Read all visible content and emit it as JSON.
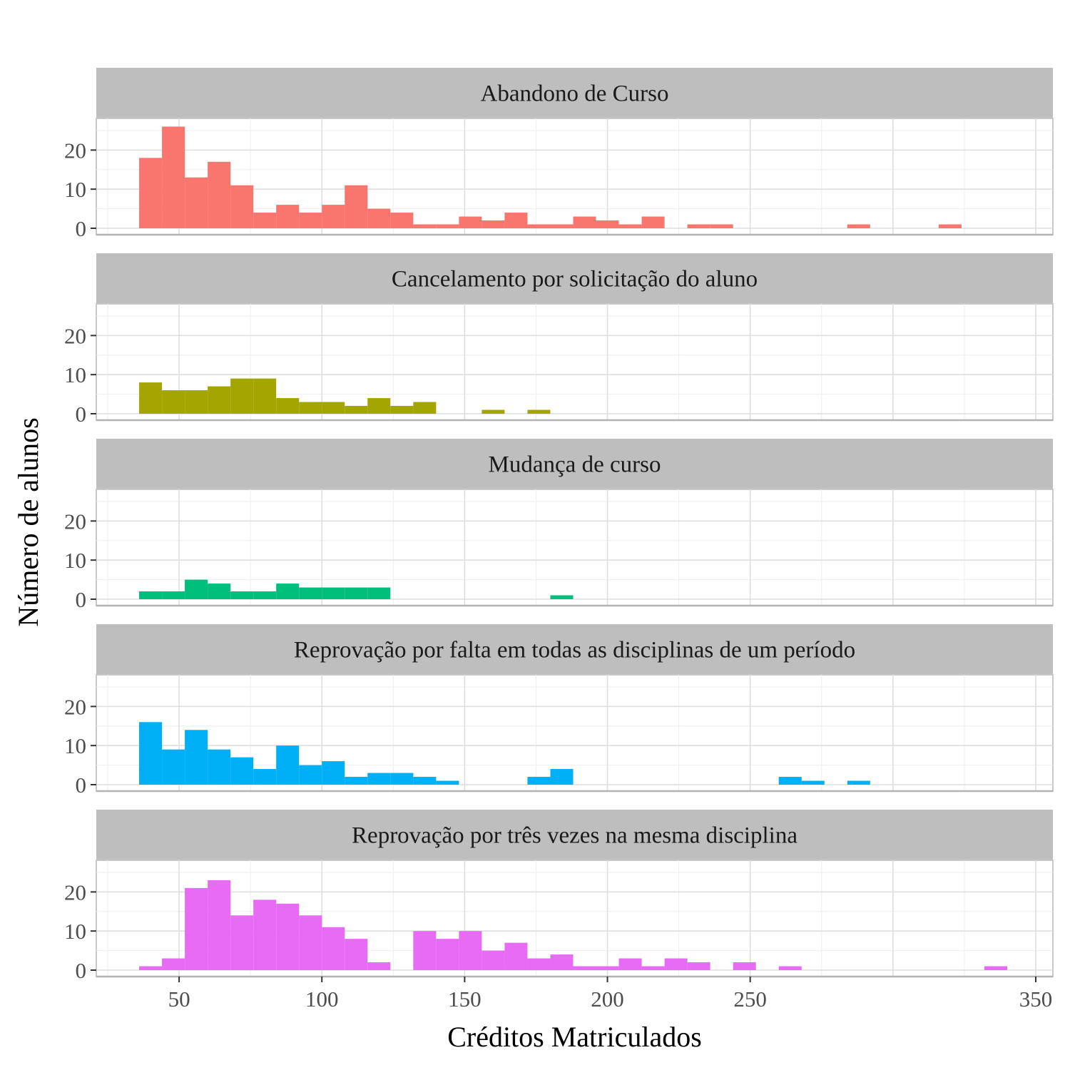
{
  "chart_data": {
    "type": "bar",
    "xlabel": "Créditos Matriculados",
    "ylabel": "Número de alunos",
    "xlim": [
      21,
      356
    ],
    "ylim": [
      0,
      27
    ],
    "bin_width": 8,
    "bin_start": 36,
    "x_ticks": [
      50,
      100,
      150,
      200,
      250,
      350
    ],
    "y_ticks": [
      0,
      10,
      20
    ],
    "grid": true,
    "legend": "none",
    "panels": [
      {
        "name": "Abandono de Curso",
        "color": "#F8766D",
        "bins": [
          {
            "x0": 36,
            "count": 18
          },
          {
            "x0": 44,
            "count": 26
          },
          {
            "x0": 52,
            "count": 13
          },
          {
            "x0": 60,
            "count": 17
          },
          {
            "x0": 68,
            "count": 11
          },
          {
            "x0": 76,
            "count": 4
          },
          {
            "x0": 84,
            "count": 6
          },
          {
            "x0": 92,
            "count": 4
          },
          {
            "x0": 100,
            "count": 6
          },
          {
            "x0": 108,
            "count": 11
          },
          {
            "x0": 116,
            "count": 5
          },
          {
            "x0": 124,
            "count": 4
          },
          {
            "x0": 132,
            "count": 1
          },
          {
            "x0": 140,
            "count": 1
          },
          {
            "x0": 148,
            "count": 3
          },
          {
            "x0": 156,
            "count": 2
          },
          {
            "x0": 164,
            "count": 4
          },
          {
            "x0": 172,
            "count": 1
          },
          {
            "x0": 180,
            "count": 1
          },
          {
            "x0": 188,
            "count": 3
          },
          {
            "x0": 196,
            "count": 2
          },
          {
            "x0": 204,
            "count": 1
          },
          {
            "x0": 212,
            "count": 3
          },
          {
            "x0": 228,
            "count": 1
          },
          {
            "x0": 236,
            "count": 1
          },
          {
            "x0": 284,
            "count": 1
          },
          {
            "x0": 316,
            "count": 1
          }
        ]
      },
      {
        "name": "Cancelamento por solicitação do aluno",
        "color": "#A3A500",
        "bins": [
          {
            "x0": 36,
            "count": 8
          },
          {
            "x0": 44,
            "count": 6
          },
          {
            "x0": 52,
            "count": 6
          },
          {
            "x0": 60,
            "count": 7
          },
          {
            "x0": 68,
            "count": 9
          },
          {
            "x0": 76,
            "count": 9
          },
          {
            "x0": 84,
            "count": 4
          },
          {
            "x0": 92,
            "count": 3
          },
          {
            "x0": 100,
            "count": 3
          },
          {
            "x0": 108,
            "count": 2
          },
          {
            "x0": 116,
            "count": 4
          },
          {
            "x0": 124,
            "count": 2
          },
          {
            "x0": 132,
            "count": 3
          },
          {
            "x0": 156,
            "count": 1
          },
          {
            "x0": 172,
            "count": 1
          }
        ]
      },
      {
        "name": "Mudança de curso",
        "color": "#00BF7D",
        "bins": [
          {
            "x0": 36,
            "count": 2
          },
          {
            "x0": 44,
            "count": 2
          },
          {
            "x0": 52,
            "count": 5
          },
          {
            "x0": 60,
            "count": 4
          },
          {
            "x0": 68,
            "count": 2
          },
          {
            "x0": 76,
            "count": 2
          },
          {
            "x0": 84,
            "count": 4
          },
          {
            "x0": 92,
            "count": 3
          },
          {
            "x0": 100,
            "count": 3
          },
          {
            "x0": 108,
            "count": 3
          },
          {
            "x0": 116,
            "count": 3
          },
          {
            "x0": 180,
            "count": 1
          }
        ]
      },
      {
        "name": "Reprovação por falta em todas as disciplinas de um período",
        "color": "#00B0F6",
        "bins": [
          {
            "x0": 36,
            "count": 16
          },
          {
            "x0": 44,
            "count": 9
          },
          {
            "x0": 52,
            "count": 14
          },
          {
            "x0": 60,
            "count": 9
          },
          {
            "x0": 68,
            "count": 7
          },
          {
            "x0": 76,
            "count": 4
          },
          {
            "x0": 84,
            "count": 10
          },
          {
            "x0": 92,
            "count": 5
          },
          {
            "x0": 100,
            "count": 6
          },
          {
            "x0": 108,
            "count": 2
          },
          {
            "x0": 116,
            "count": 3
          },
          {
            "x0": 124,
            "count": 3
          },
          {
            "x0": 132,
            "count": 2
          },
          {
            "x0": 140,
            "count": 1
          },
          {
            "x0": 172,
            "count": 2
          },
          {
            "x0": 180,
            "count": 4
          },
          {
            "x0": 260,
            "count": 2
          },
          {
            "x0": 268,
            "count": 1
          },
          {
            "x0": 284,
            "count": 1
          }
        ]
      },
      {
        "name": "Reprovação por três vezes na mesma disciplina",
        "color": "#E76BF3",
        "bins": [
          {
            "x0": 36,
            "count": 1
          },
          {
            "x0": 44,
            "count": 3
          },
          {
            "x0": 52,
            "count": 21
          },
          {
            "x0": 60,
            "count": 23
          },
          {
            "x0": 68,
            "count": 14
          },
          {
            "x0": 76,
            "count": 18
          },
          {
            "x0": 84,
            "count": 17
          },
          {
            "x0": 92,
            "count": 14
          },
          {
            "x0": 100,
            "count": 11
          },
          {
            "x0": 108,
            "count": 8
          },
          {
            "x0": 116,
            "count": 2
          },
          {
            "x0": 132,
            "count": 10
          },
          {
            "x0": 140,
            "count": 8
          },
          {
            "x0": 148,
            "count": 10
          },
          {
            "x0": 156,
            "count": 5
          },
          {
            "x0": 164,
            "count": 7
          },
          {
            "x0": 172,
            "count": 3
          },
          {
            "x0": 180,
            "count": 4
          },
          {
            "x0": 188,
            "count": 1
          },
          {
            "x0": 196,
            "count": 1
          },
          {
            "x0": 204,
            "count": 3
          },
          {
            "x0": 212,
            "count": 1
          },
          {
            "x0": 220,
            "count": 3
          },
          {
            "x0": 228,
            "count": 2
          },
          {
            "x0": 244,
            "count": 2
          },
          {
            "x0": 260,
            "count": 1
          },
          {
            "x0": 332,
            "count": 1
          }
        ]
      }
    ]
  }
}
